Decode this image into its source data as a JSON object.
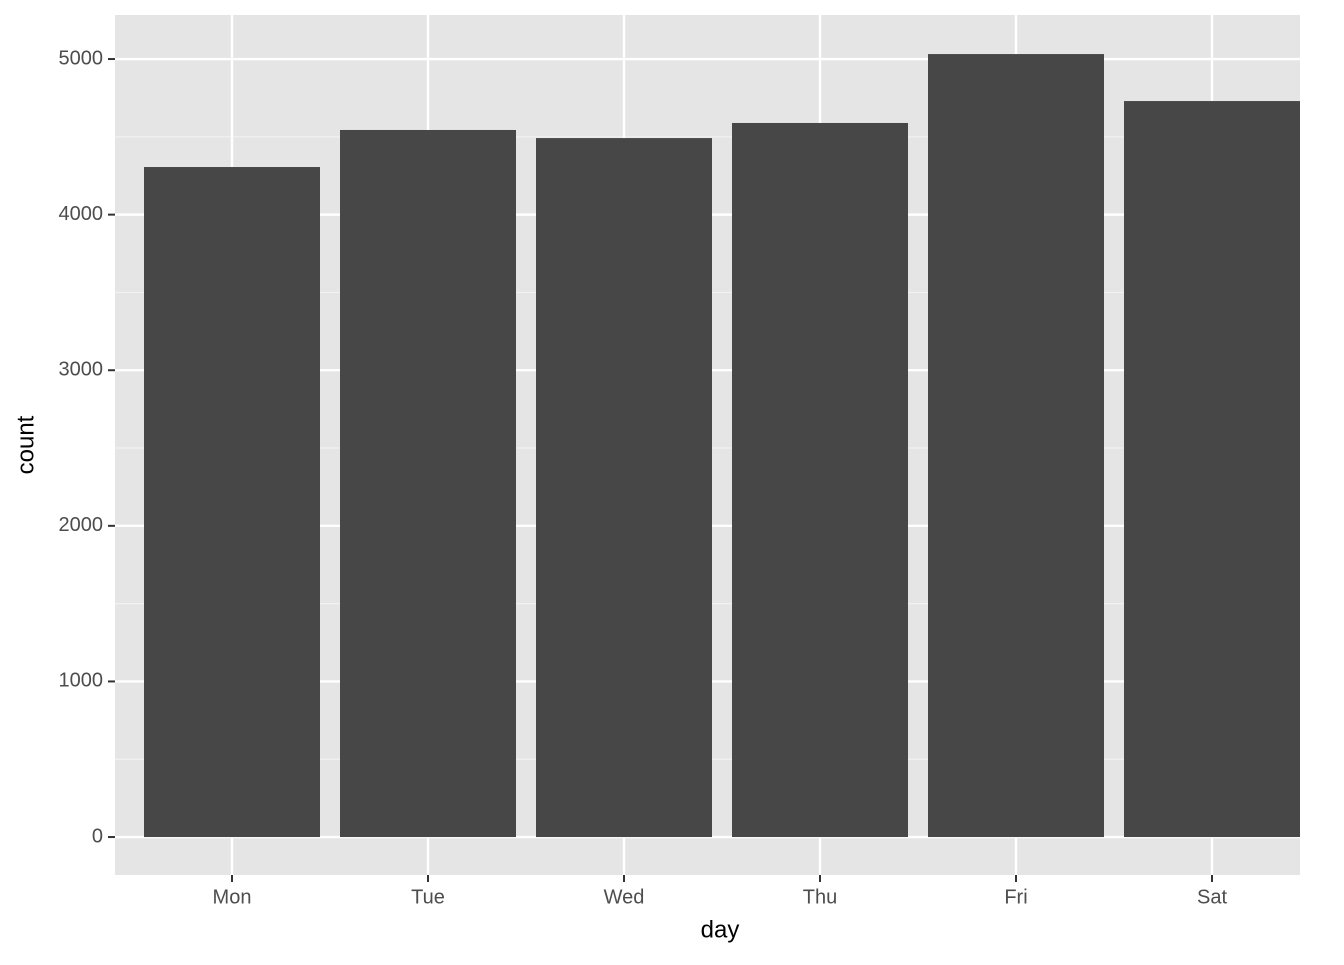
{
  "chart_data": {
    "type": "bar",
    "x_label": "day",
    "y_label": "count",
    "categories": [
      "Mon",
      "Tue",
      "Wed",
      "Thu",
      "Fri",
      "Sat"
    ],
    "values": [
      4306,
      4544,
      4492,
      4589,
      5032,
      4730
    ],
    "color": "#474747",
    "ylim": [
      -244,
      5283
    ],
    "yticks": [
      0,
      1000,
      2000,
      3000,
      4000,
      5000
    ],
    "grid": true
  }
}
